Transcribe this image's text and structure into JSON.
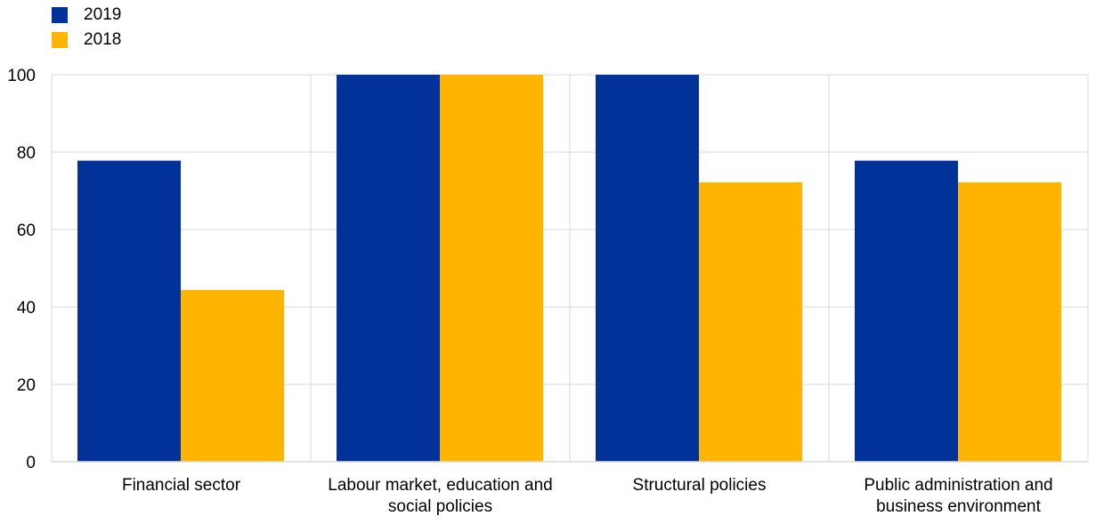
{
  "chart_data": {
    "type": "bar",
    "categories": [
      [
        "Financial sector"
      ],
      [
        "Labour market, education and",
        "social policies"
      ],
      [
        "Structural policies"
      ],
      [
        "Public administration and",
        "business environment"
      ]
    ],
    "series": [
      {
        "name": "2019",
        "color": "#003299",
        "values": [
          77.8,
          100,
          100,
          77.8
        ]
      },
      {
        "name": "2018",
        "color": "#ffb400",
        "values": [
          44.4,
          100,
          72.2,
          72.2
        ]
      }
    ],
    "ylim": [
      0,
      100
    ],
    "yticks": [
      0,
      20,
      40,
      60,
      80,
      100
    ],
    "grid": true,
    "legend_position": "top-left",
    "title": "",
    "xlabel": "",
    "ylabel": ""
  }
}
